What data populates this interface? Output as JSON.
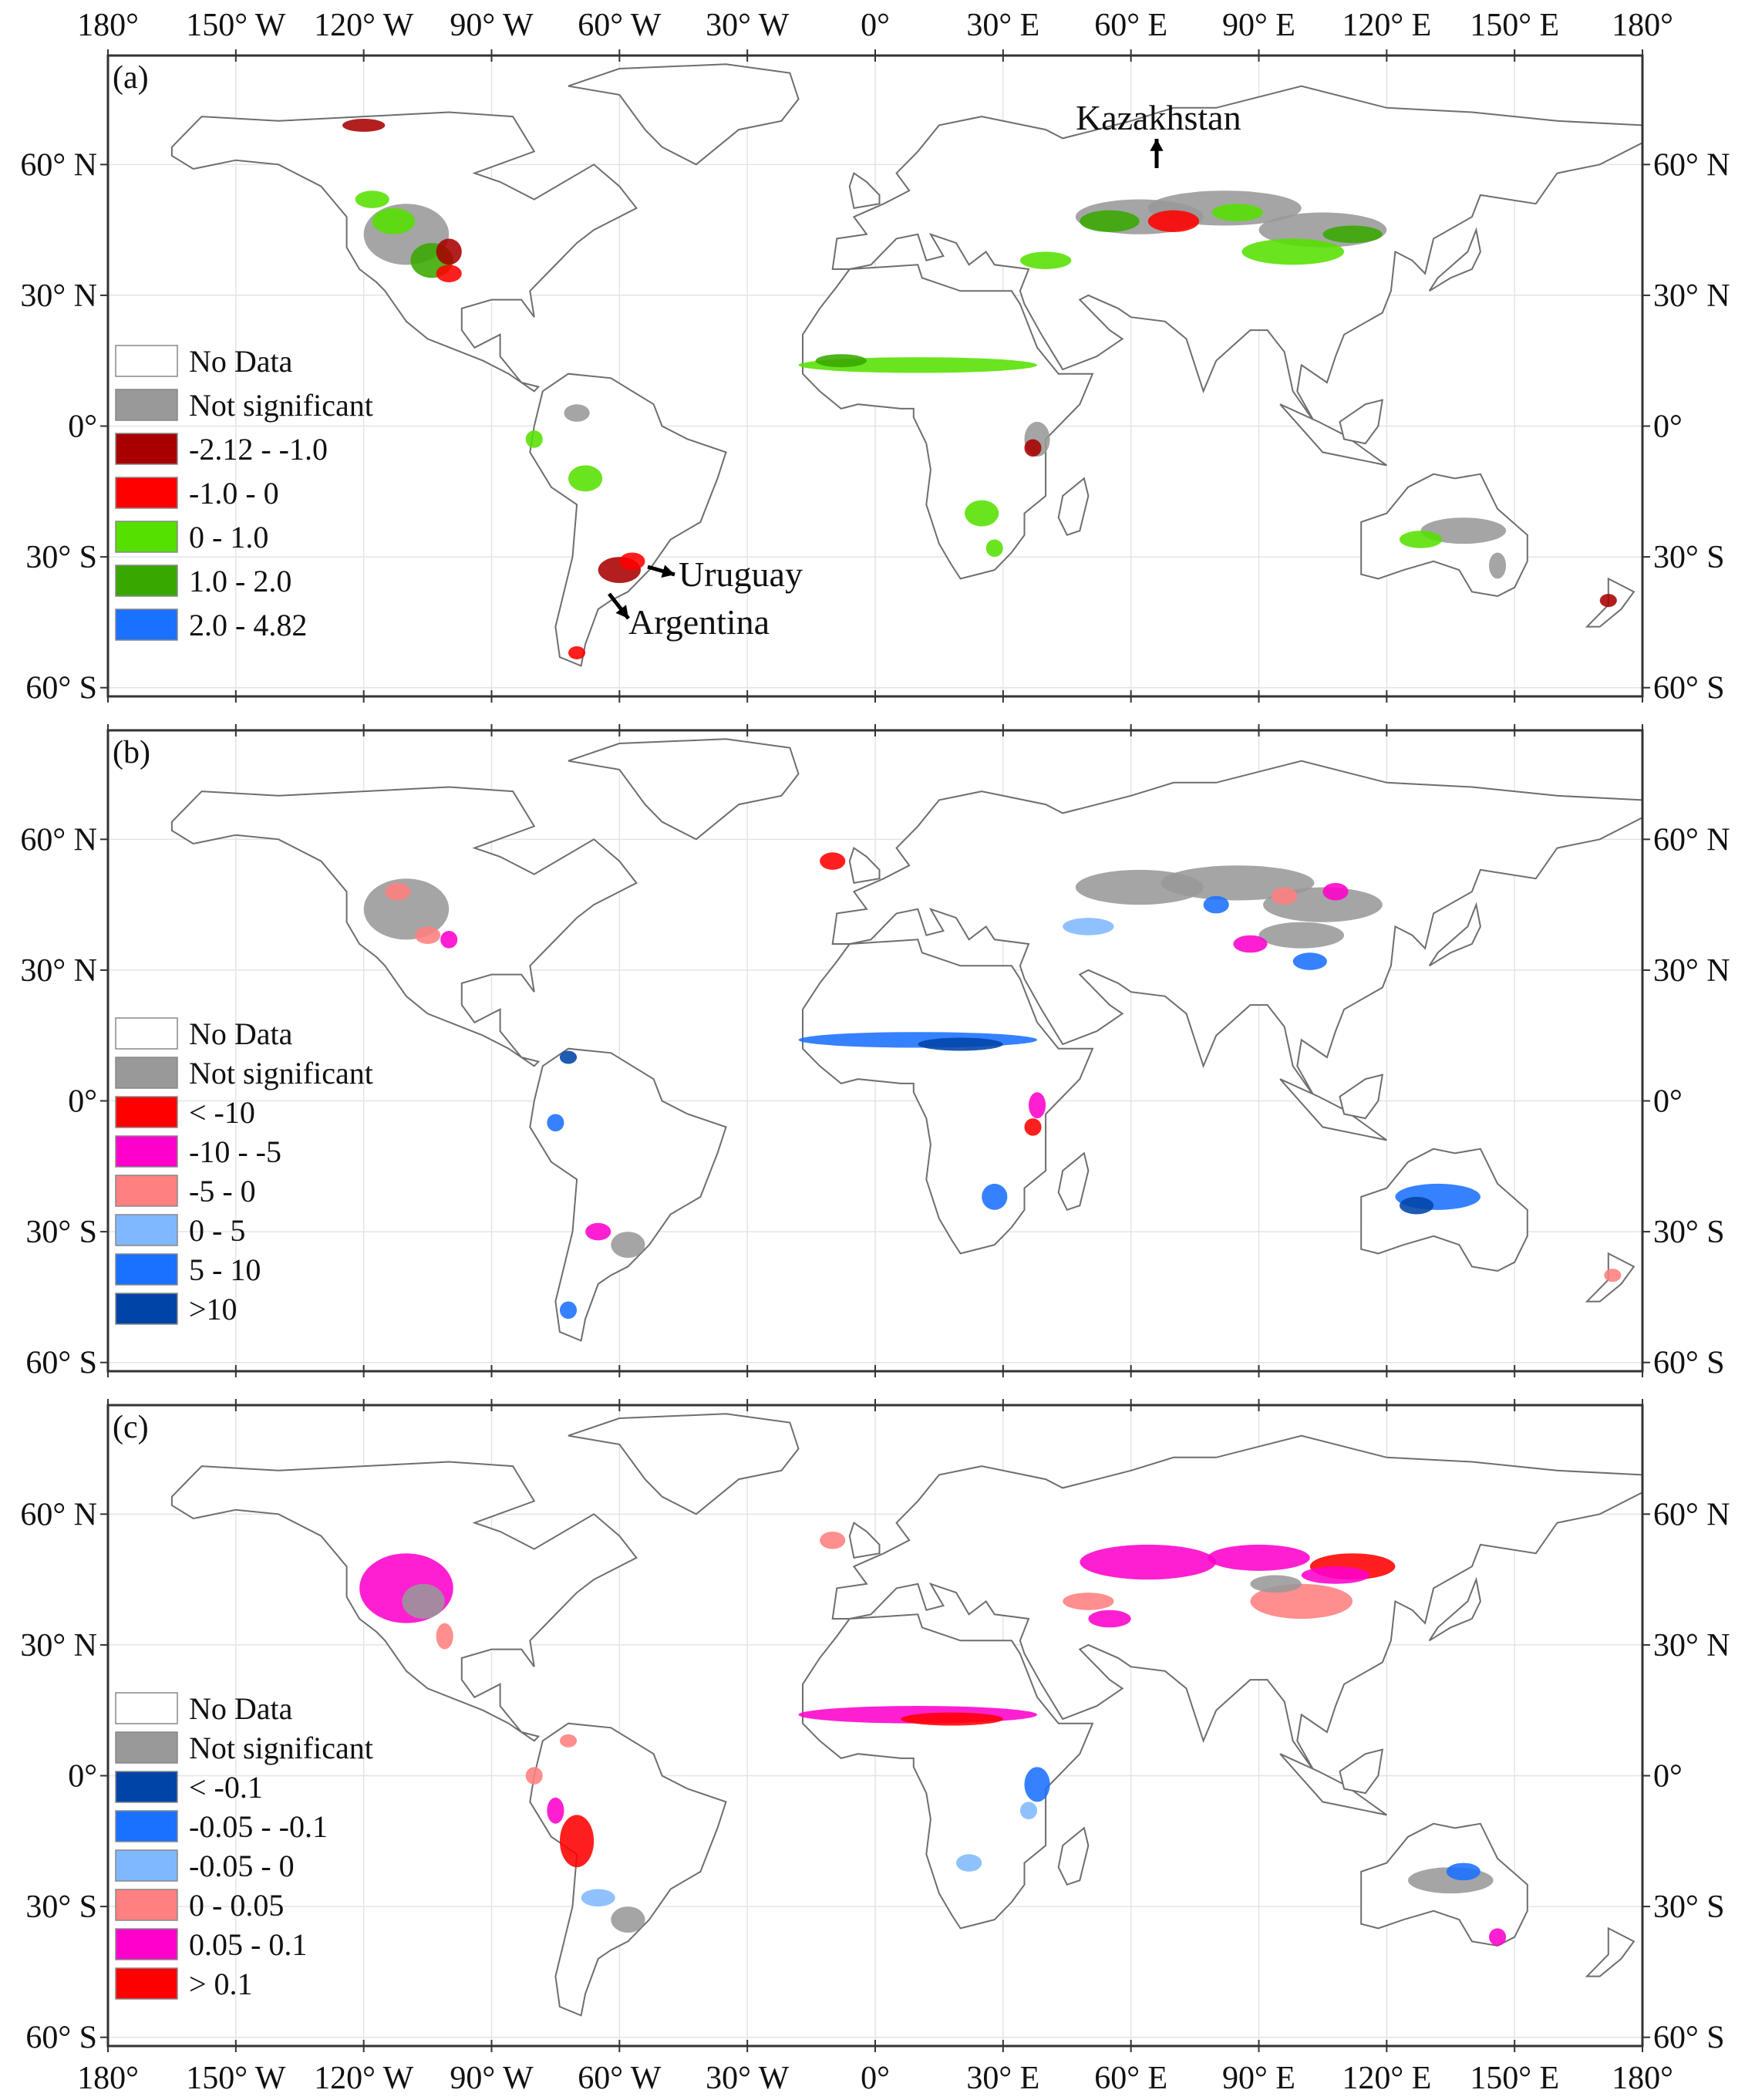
{
  "axes": {
    "x_ticks": [
      "180°",
      "150° W",
      "120° W",
      "90° W",
      "60° W",
      "30° W",
      "0°",
      "30° E",
      "60° E",
      "90° E",
      "120° E",
      "150° E",
      "180°"
    ],
    "y_ticks": [
      "60° N",
      "30° N",
      "0°",
      "30° S",
      "60° S"
    ]
  },
  "panels": [
    {
      "label": "(a)",
      "legend": [
        {
          "label": "No Data",
          "color": "#ffffff"
        },
        {
          "label": "Not significant",
          "color": "#999999"
        },
        {
          "label": "-2.12 - -1.0",
          "color": "#a80000"
        },
        {
          "label": "-1.0 - 0",
          "color": "#ff0000"
        },
        {
          "label": "0 - 1.0",
          "color": "#55e000"
        },
        {
          "label": "1.0 - 2.0",
          "color": "#38a800"
        },
        {
          "label": "2.0 - 4.82",
          "color": "#1a70ff"
        }
      ],
      "annotations": [
        {
          "text": "Kazakhstan",
          "lon": 69,
          "lat": 48
        },
        {
          "text": "Uruguay",
          "lon": -56,
          "lat": -32
        },
        {
          "text": "Argentina",
          "lon": -62,
          "lat": -40
        }
      ]
    },
    {
      "label": "(b)",
      "legend": [
        {
          "label": "No Data",
          "color": "#ffffff"
        },
        {
          "label": "Not significant",
          "color": "#999999"
        },
        {
          "label": "< -10",
          "color": "#ff0000"
        },
        {
          "label": "-10 - -5",
          "color": "#ff00cc"
        },
        {
          "label": "-5 - 0",
          "color": "#ff8080"
        },
        {
          "label": "0 - 5",
          "color": "#80b8ff"
        },
        {
          "label": "5 - 10",
          "color": "#1a70ff"
        },
        {
          "label": ">10",
          "color": "#0044a8"
        }
      ],
      "annotations": []
    },
    {
      "label": "(c)",
      "legend": [
        {
          "label": "No Data",
          "color": "#ffffff"
        },
        {
          "label": "Not significant",
          "color": "#999999"
        },
        {
          "label": "< -0.1",
          "color": "#0044a8"
        },
        {
          "label": "-0.05 - -0.1",
          "color": "#1a70ff"
        },
        {
          "label": "-0.05 - 0",
          "color": "#80b8ff"
        },
        {
          "label": "0 - 0.05",
          "color": "#ff8080"
        },
        {
          "label": "0.05 - 0.1",
          "color": "#ff00cc"
        },
        {
          "label": "> 0.1",
          "color": "#ff0000"
        }
      ],
      "annotations": []
    }
  ]
}
